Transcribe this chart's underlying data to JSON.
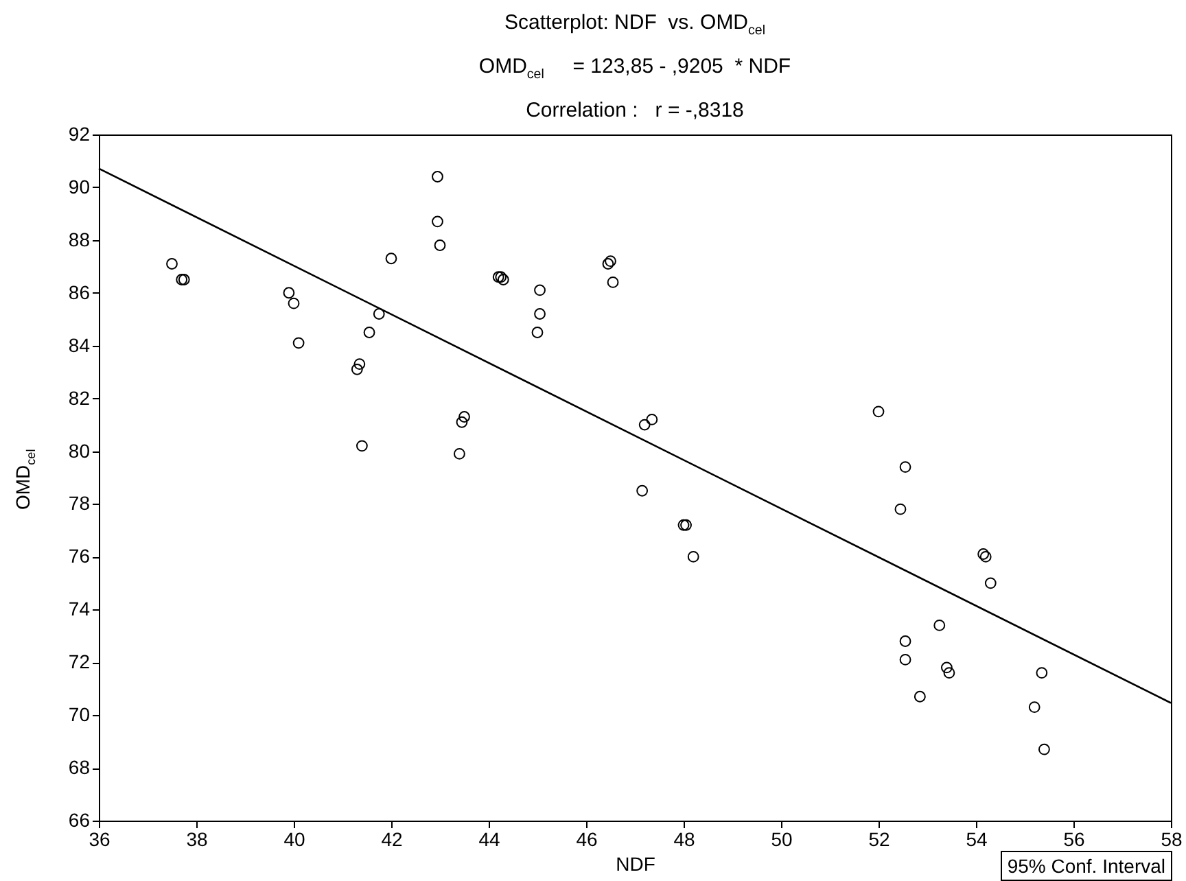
{
  "chart_data": {
    "type": "scatter",
    "title": "Scatterplot: NDF  vs. OMD$_{cel}$",
    "subtitle": "OMD$_{cel}$     = 123,85 - ,9205  * NDF\nCorrelation :   r = -,8318",
    "xlabel": "NDF",
    "ylabel": "OMD$_{cel}$",
    "annotations": [
      "95% Conf. Interval"
    ],
    "xlim": [
      36,
      58
    ],
    "xticks": [
      36,
      38,
      40,
      42,
      44,
      46,
      48,
      50,
      52,
      54,
      56,
      58
    ],
    "ylim": [
      66,
      92
    ],
    "yticks": [
      66,
      68,
      70,
      72,
      74,
      76,
      78,
      80,
      82,
      84,
      86,
      88,
      90,
      92
    ],
    "grid": false,
    "series": [
      {
        "color": "#000000",
        "marker": "circle",
        "x": [
          37.5,
          37.7,
          37.75,
          39.9,
          40.0,
          40.1,
          41.3,
          41.35,
          41.4,
          41.55,
          41.75,
          42.0,
          42.95,
          42.95,
          43.0,
          43.4,
          43.45,
          43.5,
          44.2,
          44.25,
          44.3,
          45.0,
          45.05,
          45.05,
          46.45,
          46.5,
          46.55,
          47.2,
          47.35,
          47.15,
          48.0,
          48.05,
          48.2,
          52.0,
          52.55,
          52.45,
          52.55,
          52.55,
          52.85,
          53.25,
          53.4,
          53.45,
          54.15,
          54.2,
          54.3,
          55.35,
          55.2,
          55.4
        ],
        "values": [
          87.1,
          86.5,
          86.5,
          86.0,
          85.6,
          84.1,
          83.1,
          83.3,
          80.2,
          84.5,
          85.2,
          87.3,
          90.4,
          88.7,
          87.8,
          79.9,
          81.1,
          81.3,
          86.6,
          86.6,
          86.5,
          84.5,
          85.2,
          86.1,
          87.1,
          87.2,
          86.4,
          81.0,
          81.2,
          78.5,
          77.2,
          77.2,
          76.0,
          81.5,
          79.4,
          77.8,
          72.8,
          72.1,
          70.7,
          73.4,
          71.8,
          71.6,
          76.1,
          76.0,
          75.0,
          71.6,
          70.3,
          68.7
        ]
      },
      {
        "type": "line",
        "color": "#000000",
        "line_style": "solid",
        "marker": "none",
        "x": [
          36,
          58
        ],
        "values": [
          90.71,
          70.46
        ]
      }
    ]
  }
}
